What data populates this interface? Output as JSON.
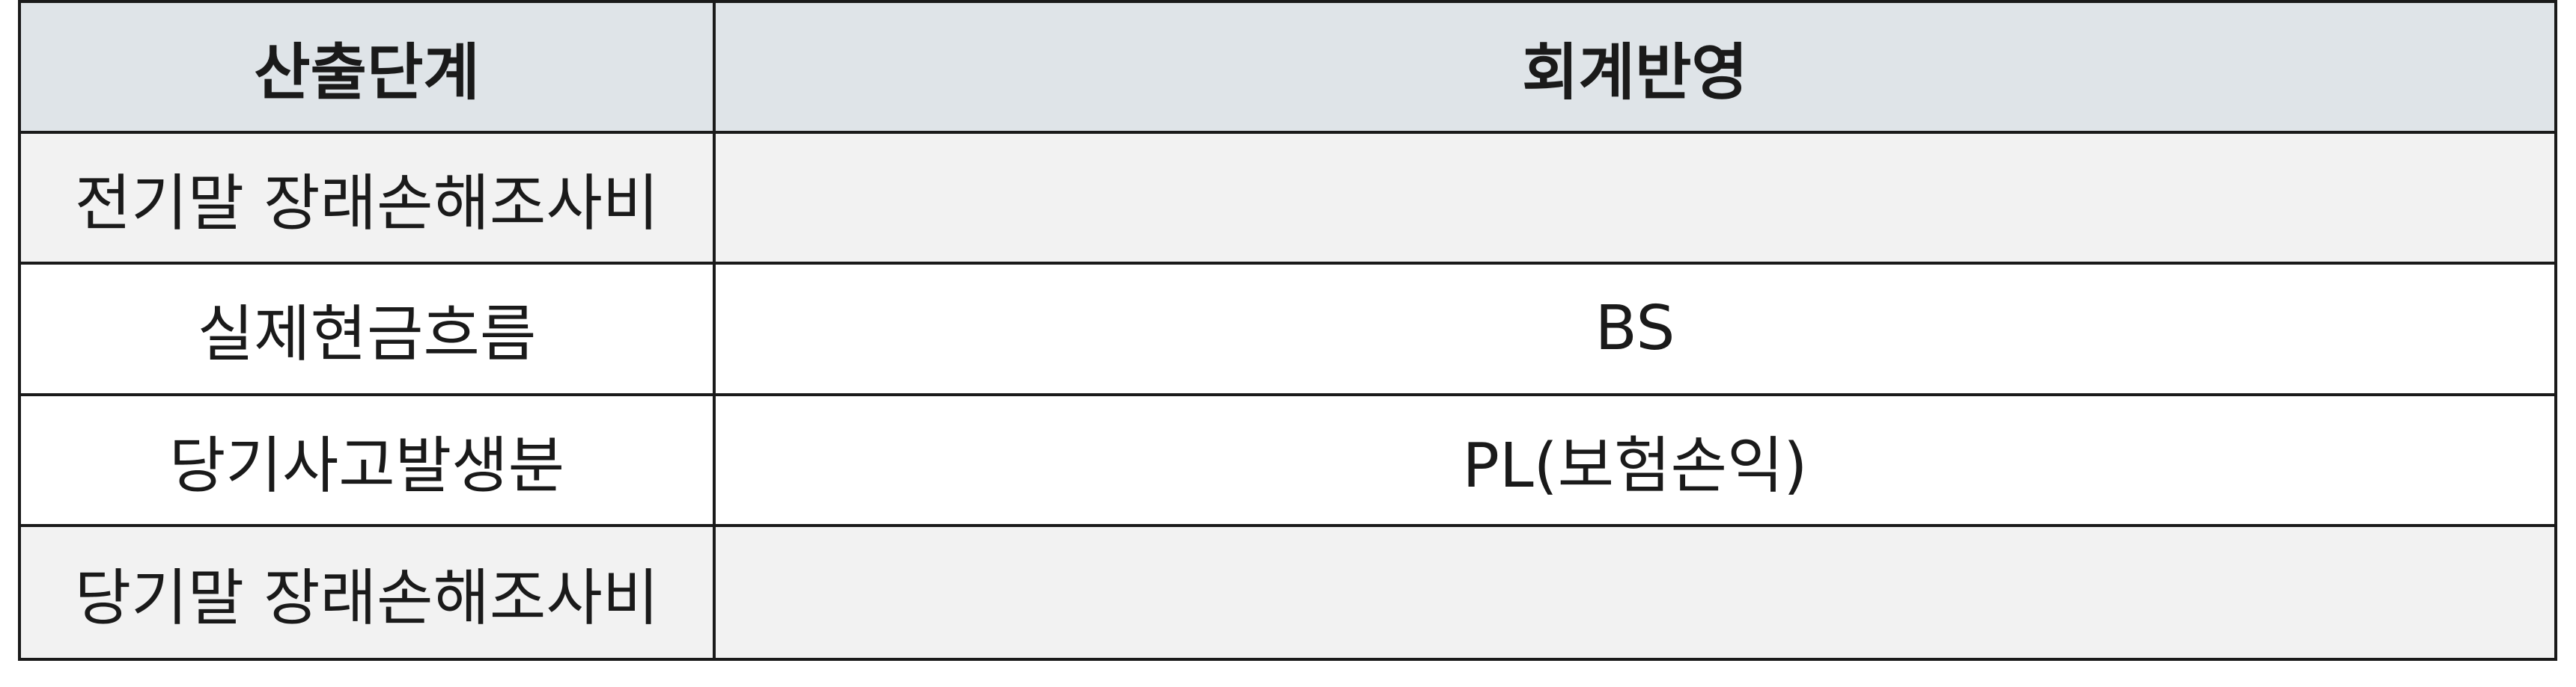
{
  "table": {
    "headers": [
      "산출단계",
      "회계반영"
    ],
    "rows": [
      [
        "전기말 장래손해조사비",
        ""
      ],
      [
        "실제현금흐름",
        "BS"
      ],
      [
        "당기사고발생분",
        "PL(보험손익)"
      ],
      [
        "당기말 장래손해조사비",
        ""
      ]
    ]
  }
}
